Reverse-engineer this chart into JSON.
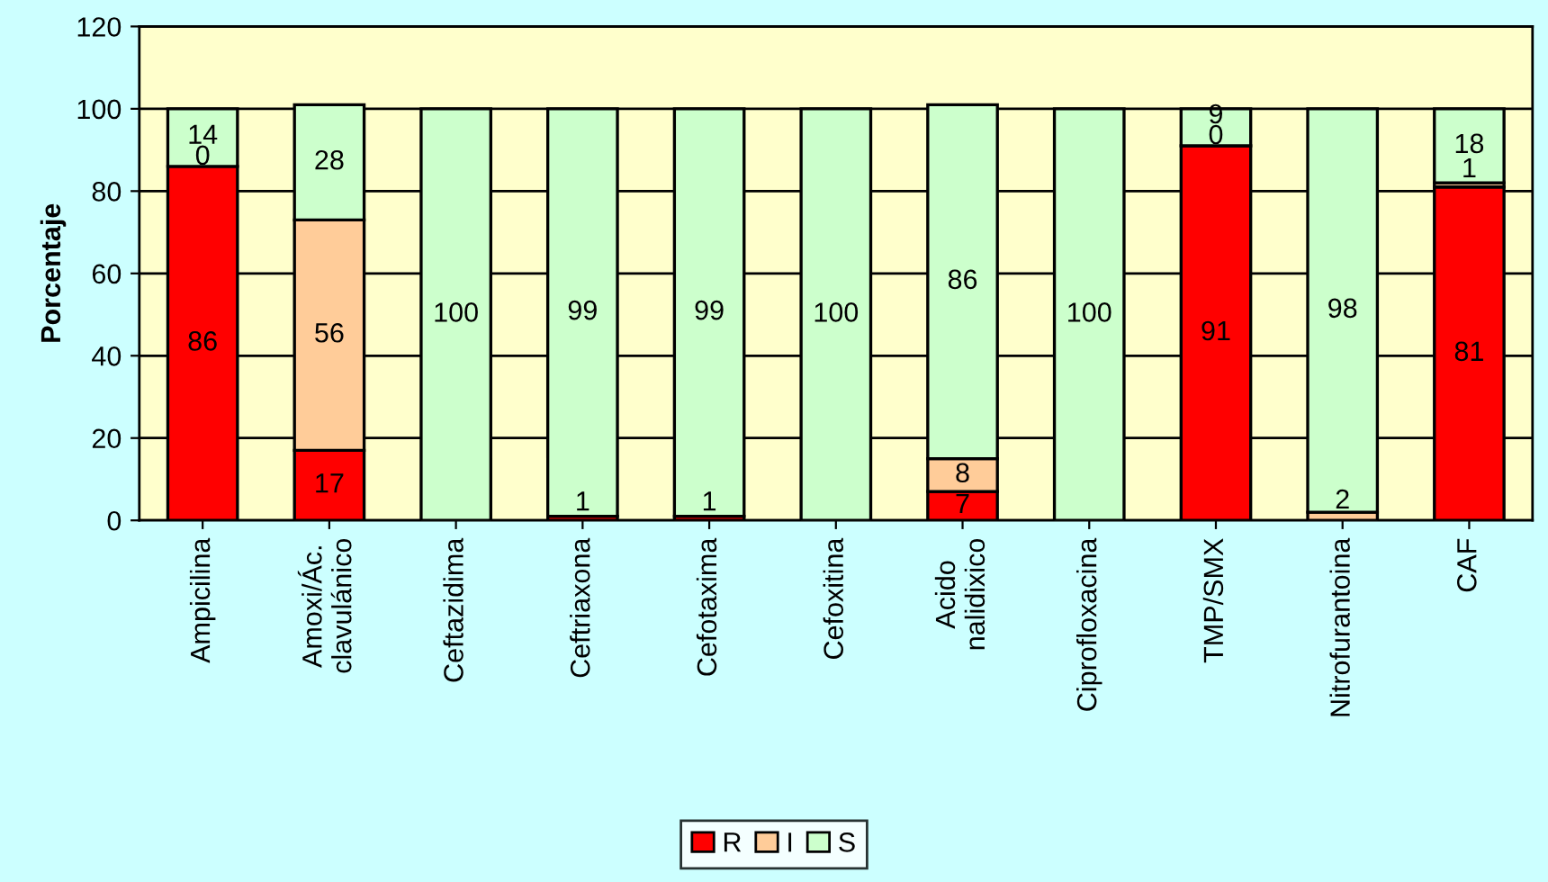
{
  "chart_data": {
    "type": "bar",
    "stacked": true,
    "ylabel": "Porcentaje",
    "categories": [
      "Ampicilina",
      "Amoxi/Ác.\nclavulánico",
      "Ceftazidima",
      "Ceftriaxona",
      "Cefotaxima",
      "Cefoxitina",
      "Acido\nnalidixico",
      "Ciprofloxacina",
      "TMP/SMX",
      "Nitrofurantoina",
      "CAF"
    ],
    "series": [
      {
        "name": "R",
        "color": "#ff0000",
        "values": [
          86,
          17,
          0,
          1,
          1,
          0,
          7,
          0,
          91,
          0,
          81
        ],
        "value_labels": [
          "86",
          "17",
          null,
          "1",
          "1",
          null,
          "7",
          null,
          "91",
          null,
          "81"
        ]
      },
      {
        "name": "I",
        "color": "#ffcc99",
        "values": [
          0,
          56,
          0,
          0,
          0,
          0,
          8,
          0,
          0,
          2,
          1
        ],
        "value_labels": [
          "0",
          "56",
          null,
          null,
          null,
          null,
          "8",
          null,
          "0",
          "2",
          "1"
        ]
      },
      {
        "name": "S",
        "color": "#ccffcc",
        "values": [
          14,
          28,
          100,
          99,
          99,
          100,
          86,
          100,
          9,
          98,
          18
        ],
        "value_labels": [
          "14",
          "28",
          "100",
          "99",
          "99",
          "100",
          "86",
          "100",
          "9",
          "98",
          "18"
        ]
      }
    ],
    "ylim": [
      0,
      120
    ],
    "yticks": [
      0,
      20,
      40,
      60,
      80,
      100,
      120
    ],
    "grid": "y",
    "legend": "bottom"
  }
}
